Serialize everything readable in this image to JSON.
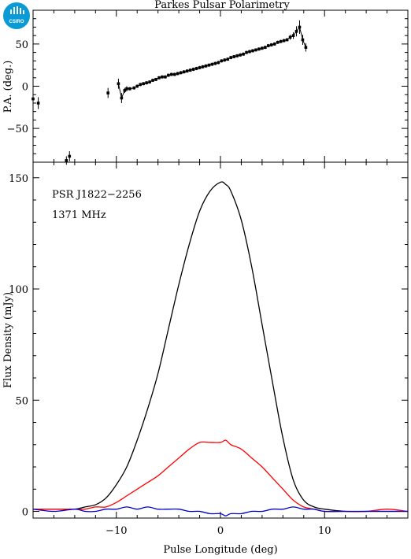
{
  "logo": {
    "text": "CSIRO",
    "color": "#0a9bd6"
  },
  "chart_data": [
    {
      "type": "scatter",
      "title": "Parkes Pulsar Polarimetry",
      "xlabel": "",
      "ylabel": "P.A. (deg.)",
      "xlim": [
        -18,
        18
      ],
      "ylim": [
        -90,
        90
      ],
      "yticks": [
        -50,
        0,
        50
      ],
      "error_bars": true,
      "series": [
        {
          "x": [
            -18.0,
            -17.5,
            -14.8,
            -14.5,
            -10.8,
            -9.8,
            -9.5,
            -9.2,
            -9.0,
            -8.7,
            -8.3,
            -8.0,
            -7.7,
            -7.4,
            -7.1,
            -6.8,
            -6.5,
            -6.2,
            -5.9,
            -5.6,
            -5.3,
            -5.0,
            -4.7,
            -4.4,
            -4.1,
            -3.8,
            -3.5,
            -3.2,
            -2.9,
            -2.6,
            -2.3,
            -2.0,
            -1.7,
            -1.4,
            -1.1,
            -0.8,
            -0.5,
            -0.2,
            0.1,
            0.4,
            0.7,
            1.0,
            1.3,
            1.6,
            1.9,
            2.2,
            2.5,
            2.8,
            3.1,
            3.4,
            3.7,
            4.0,
            4.3,
            4.6,
            4.9,
            5.2,
            5.5,
            5.8,
            6.1,
            6.4,
            6.7,
            7.0,
            7.3,
            7.6,
            7.9,
            8.2
          ],
          "y": [
            -15,
            -20,
            -88,
            -83,
            -8,
            3,
            -14,
            -5,
            -3,
            -3,
            -2,
            0,
            2,
            3,
            4,
            5,
            7,
            8,
            10,
            11,
            11,
            13,
            14,
            14,
            15,
            16,
            17,
            18,
            19,
            20,
            21,
            22,
            23,
            24,
            25,
            26,
            27,
            28,
            30,
            31,
            32,
            34,
            35,
            36,
            37,
            38,
            40,
            41,
            42,
            43,
            44,
            45,
            46,
            48,
            49,
            50,
            52,
            53,
            54,
            55,
            58,
            60,
            65,
            70,
            55,
            46
          ],
          "yerr": [
            6,
            7,
            5,
            6,
            6,
            6,
            6,
            3,
            3,
            2,
            2,
            2,
            2,
            2,
            2,
            2,
            2,
            2,
            2,
            2,
            2,
            2,
            2,
            2,
            2,
            2,
            2,
            2,
            2,
            2,
            2,
            2,
            2,
            2,
            2,
            2,
            2,
            2,
            2,
            2,
            2,
            2,
            2,
            2,
            2,
            2,
            2,
            2,
            2,
            2,
            2,
            2,
            2,
            2,
            2,
            2,
            2,
            2,
            2,
            2,
            3,
            4,
            6,
            8,
            6,
            5
          ]
        }
      ]
    },
    {
      "type": "line",
      "xlabel": "Pulse Longitude (deg)",
      "ylabel": "Flux Density (mJy)",
      "xlim": [
        -18,
        18
      ],
      "ylim": [
        -3,
        157
      ],
      "xticks": [
        -10,
        0,
        10
      ],
      "yticks": [
        0,
        50,
        100,
        150
      ],
      "annotations": [
        "PSR J1822−2256",
        "1371 MHz"
      ],
      "series": [
        {
          "color": "#000000",
          "x": [
            -18,
            -16,
            -14,
            -13,
            -12,
            -11,
            -10,
            -9,
            -8,
            -7,
            -6,
            -5,
            -4,
            -3,
            -2,
            -1,
            0,
            0.5,
            1,
            2,
            3,
            4,
            5,
            6,
            7,
            8,
            9,
            10,
            12,
            14,
            16,
            18
          ],
          "y": [
            1,
            1,
            1,
            2,
            3,
            6,
            12,
            20,
            32,
            46,
            62,
            82,
            102,
            120,
            135,
            144,
            148,
            147,
            144,
            131,
            110,
            84,
            58,
            33,
            14,
            5,
            2,
            1,
            0,
            0,
            0,
            0
          ]
        },
        {
          "color": "#ff0000",
          "x": [
            -18,
            -16,
            -14,
            -13,
            -12,
            -11,
            -10,
            -9,
            -8,
            -7,
            -6,
            -5,
            -4,
            -3,
            -2,
            -1,
            0,
            0.5,
            1,
            2,
            3,
            4,
            5,
            6,
            7,
            8,
            9,
            10,
            12,
            14,
            16,
            18
          ],
          "y": [
            1,
            1,
            1,
            1,
            2,
            2,
            4,
            7,
            10,
            13,
            16,
            20,
            24,
            28,
            31,
            31,
            31,
            32,
            30,
            28,
            24,
            20,
            15,
            10,
            5,
            2,
            1,
            0,
            0,
            0,
            1,
            0
          ],
          "name": ""
        },
        {
          "color": "#0000cc",
          "x": [
            -18,
            -16,
            -14,
            -13,
            -12,
            -11,
            -10,
            -9,
            -8,
            -7,
            -6,
            -5,
            -4,
            -3,
            -2,
            -1,
            0,
            0.5,
            1,
            2,
            3,
            4,
            5,
            6,
            7,
            8,
            9,
            10,
            12,
            14,
            16,
            18
          ],
          "y": [
            1,
            0,
            1,
            0,
            0,
            1,
            1,
            2,
            1,
            2,
            1,
            1,
            1,
            0,
            0,
            -1,
            -1,
            -2,
            -1,
            -1,
            0,
            0,
            1,
            1,
            2,
            1,
            1,
            0,
            0,
            0,
            0,
            0
          ],
          "name": ""
        }
      ]
    }
  ]
}
